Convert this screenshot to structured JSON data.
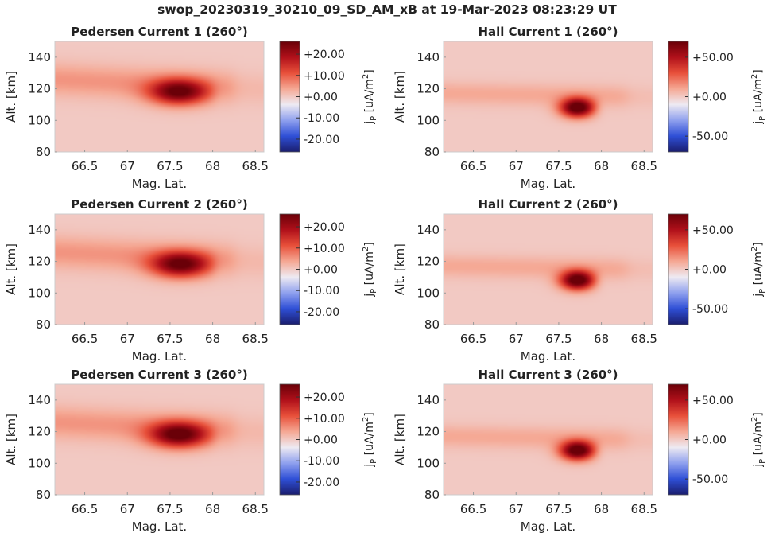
{
  "figure": {
    "title": "swop_20230319_30210_09_SD_AM_xB at 19-Mar-2023 08:23:29 UT"
  },
  "colors": {
    "cmap": [
      "#1a1d6e",
      "#2f4fd6",
      "#8fa0ee",
      "#eeeaf2",
      "#f5a894",
      "#e8503a",
      "#b0101a",
      "#6a0008"
    ],
    "background_value_color": "#ecdfe4",
    "axis": "#cccccc",
    "text": "#222222"
  },
  "chart_data": [
    {
      "type": "heatmap",
      "id": "ped1",
      "row": 0,
      "col": 0,
      "title": "Pedersen Current 1 (260°)",
      "xlabel": "Mag. Lat.",
      "ylabel": "Alt. [km]",
      "xlim": [
        66.15,
        68.6
      ],
      "ylim": [
        80,
        150
      ],
      "xticks": [
        66.5,
        67,
        67.5,
        68,
        68.5
      ],
      "xtick_labels": [
        "66.5",
        "67",
        "67.5",
        "68",
        "68.5"
      ],
      "yticks": [
        80,
        100,
        120,
        140
      ],
      "ytick_labels": [
        "80",
        "100",
        "120",
        "140"
      ],
      "colorbar": {
        "label_main": "j",
        "label_sub": "P",
        "label_unit": " [uA/m",
        "label_sup": "2",
        "label_end": "]",
        "clim": [
          -26,
          26
        ],
        "ticks": [
          20,
          10,
          0,
          -10,
          -20
        ],
        "tick_labels": [
          "+20.00",
          "+10.00",
          "+0.00",
          "-10.00",
          "-20.00"
        ]
      },
      "field": {
        "band_center_alt": 123,
        "band_sigma_alt": 10,
        "band_amp": 5.5,
        "band_tilt": -2.5,
        "band_fade_lat": 68.25,
        "blob_lat": 67.6,
        "blob_alt": 118,
        "blob_sigma_lat": 0.34,
        "blob_sigma_alt": 8,
        "blob_amp": 24,
        "blob_cutoff": 68.05
      }
    },
    {
      "type": "heatmap",
      "id": "hall1",
      "row": 0,
      "col": 1,
      "title": "Hall Current 1 (260°)",
      "xlabel": "Mag. Lat.",
      "ylabel": "Alt. [km]",
      "xlim": [
        66.15,
        68.6
      ],
      "ylim": [
        80,
        150
      ],
      "xticks": [
        66.5,
        67,
        67.5,
        68,
        68.5
      ],
      "xtick_labels": [
        "66.5",
        "67",
        "67.5",
        "68",
        "68.5"
      ],
      "yticks": [
        80,
        100,
        120,
        140
      ],
      "ytick_labels": [
        "80",
        "100",
        "120",
        "140"
      ],
      "colorbar": {
        "label_main": "j",
        "label_sub": "P",
        "label_unit": " [uA/m",
        "label_sup": "2",
        "label_end": "]",
        "clim": [
          -70,
          70
        ],
        "ticks": [
          50,
          0,
          -50
        ],
        "tick_labels": [
          "+50.00",
          "+0.00",
          "-50.00"
        ]
      },
      "field": {
        "band_center_alt": 116,
        "band_sigma_alt": 7,
        "band_amp": 10,
        "band_tilt": -1,
        "band_fade_lat": 68.3,
        "blob_lat": 67.72,
        "blob_alt": 108,
        "blob_sigma_lat": 0.2,
        "blob_sigma_alt": 6,
        "blob_amp": 80,
        "blob_cutoff": 68.0
      }
    },
    {
      "type": "heatmap",
      "id": "ped2",
      "row": 1,
      "col": 0,
      "title": "Pedersen Current 2 (260°)",
      "xlabel": "Mag. Lat.",
      "ylabel": "Alt. [km]",
      "xlim": [
        66.15,
        68.6
      ],
      "ylim": [
        80,
        150
      ],
      "xticks": [
        66.5,
        67,
        67.5,
        68,
        68.5
      ],
      "xtick_labels": [
        "66.5",
        "67",
        "67.5",
        "68",
        "68.5"
      ],
      "yticks": [
        80,
        100,
        120,
        140
      ],
      "ytick_labels": [
        "80",
        "100",
        "120",
        "140"
      ],
      "colorbar": {
        "label_main": "j",
        "label_sub": "P",
        "label_unit": " [uA/m",
        "label_sup": "2",
        "label_end": "]",
        "clim": [
          -26,
          26
        ],
        "ticks": [
          20,
          10,
          0,
          -10,
          -20
        ],
        "tick_labels": [
          "+20.00",
          "+10.00",
          "+0.00",
          "-10.00",
          "-20.00"
        ]
      },
      "field": {
        "band_center_alt": 123,
        "band_sigma_alt": 10,
        "band_amp": 5.5,
        "band_tilt": -2.5,
        "band_fade_lat": 68.25,
        "blob_lat": 67.62,
        "blob_alt": 118,
        "blob_sigma_lat": 0.34,
        "blob_sigma_alt": 8,
        "blob_amp": 24,
        "blob_cutoff": 68.05
      }
    },
    {
      "type": "heatmap",
      "id": "hall2",
      "row": 1,
      "col": 1,
      "title": "Hall Current 2 (260°)",
      "xlabel": "Mag. Lat.",
      "ylabel": "Alt. [km]",
      "xlim": [
        66.15,
        68.6
      ],
      "ylim": [
        80,
        150
      ],
      "xticks": [
        66.5,
        67,
        67.5,
        68,
        68.5
      ],
      "xtick_labels": [
        "66.5",
        "67",
        "67.5",
        "68",
        "68.5"
      ],
      "yticks": [
        80,
        100,
        120,
        140
      ],
      "ytick_labels": [
        "80",
        "100",
        "120",
        "140"
      ],
      "colorbar": {
        "label_main": "j",
        "label_sub": "P",
        "label_unit": " [uA/m",
        "label_sup": "2",
        "label_end": "]",
        "clim": [
          -70,
          70
        ],
        "ticks": [
          50,
          0,
          -50
        ],
        "tick_labels": [
          "+50.00",
          "+0.00",
          "-50.00"
        ]
      },
      "field": {
        "band_center_alt": 116,
        "band_sigma_alt": 7,
        "band_amp": 10,
        "band_tilt": -1,
        "band_fade_lat": 68.3,
        "blob_lat": 67.72,
        "blob_alt": 108,
        "blob_sigma_lat": 0.2,
        "blob_sigma_alt": 6,
        "blob_amp": 80,
        "blob_cutoff": 68.0
      }
    },
    {
      "type": "heatmap",
      "id": "ped3",
      "row": 2,
      "col": 0,
      "title": "Pedersen Current 3 (260°)",
      "xlabel": "Mag. Lat.",
      "ylabel": "Alt. [km]",
      "xlim": [
        66.15,
        68.6
      ],
      "ylim": [
        80,
        150
      ],
      "xticks": [
        66.5,
        67,
        67.5,
        68,
        68.5
      ],
      "xtick_labels": [
        "66.5",
        "67",
        "67.5",
        "68",
        "68.5"
      ],
      "yticks": [
        80,
        100,
        120,
        140
      ],
      "ytick_labels": [
        "80",
        "100",
        "120",
        "140"
      ],
      "colorbar": {
        "label_main": "j",
        "label_sub": "P",
        "label_unit": " [uA/m",
        "label_sup": "2",
        "label_end": "]",
        "clim": [
          -26,
          26
        ],
        "ticks": [
          20,
          10,
          0,
          -10,
          -20
        ],
        "tick_labels": [
          "+20.00",
          "+10.00",
          "+0.00",
          "-10.00",
          "-20.00"
        ]
      },
      "field": {
        "band_center_alt": 123,
        "band_sigma_alt": 10,
        "band_amp": 5.5,
        "band_tilt": -2.5,
        "band_fade_lat": 68.25,
        "blob_lat": 67.6,
        "blob_alt": 118,
        "blob_sigma_lat": 0.34,
        "blob_sigma_alt": 8,
        "blob_amp": 25,
        "blob_cutoff": 68.05
      }
    },
    {
      "type": "heatmap",
      "id": "hall3",
      "row": 2,
      "col": 1,
      "title": "Hall Current 3 (260°)",
      "xlabel": "Mag. Lat.",
      "ylabel": "Alt. [km]",
      "xlim": [
        66.15,
        68.6
      ],
      "ylim": [
        80,
        150
      ],
      "xticks": [
        66.5,
        67,
        67.5,
        68,
        68.5
      ],
      "xtick_labels": [
        "66.5",
        "67",
        "67.5",
        "68",
        "68.5"
      ],
      "yticks": [
        80,
        100,
        120,
        140
      ],
      "ytick_labels": [
        "80",
        "100",
        "120",
        "140"
      ],
      "colorbar": {
        "label_main": "j",
        "label_sub": "P",
        "label_unit": " [uA/m",
        "label_sup": "2",
        "label_end": "]",
        "clim": [
          -70,
          70
        ],
        "ticks": [
          50,
          0,
          -50
        ],
        "tick_labels": [
          "+50.00",
          "+0.00",
          "-50.00"
        ]
      },
      "field": {
        "band_center_alt": 116,
        "band_sigma_alt": 7,
        "band_amp": 10,
        "band_tilt": -1,
        "band_fade_lat": 68.3,
        "blob_lat": 67.72,
        "blob_alt": 108,
        "blob_sigma_lat": 0.2,
        "blob_sigma_alt": 6,
        "blob_amp": 80,
        "blob_cutoff": 68.0
      }
    }
  ]
}
